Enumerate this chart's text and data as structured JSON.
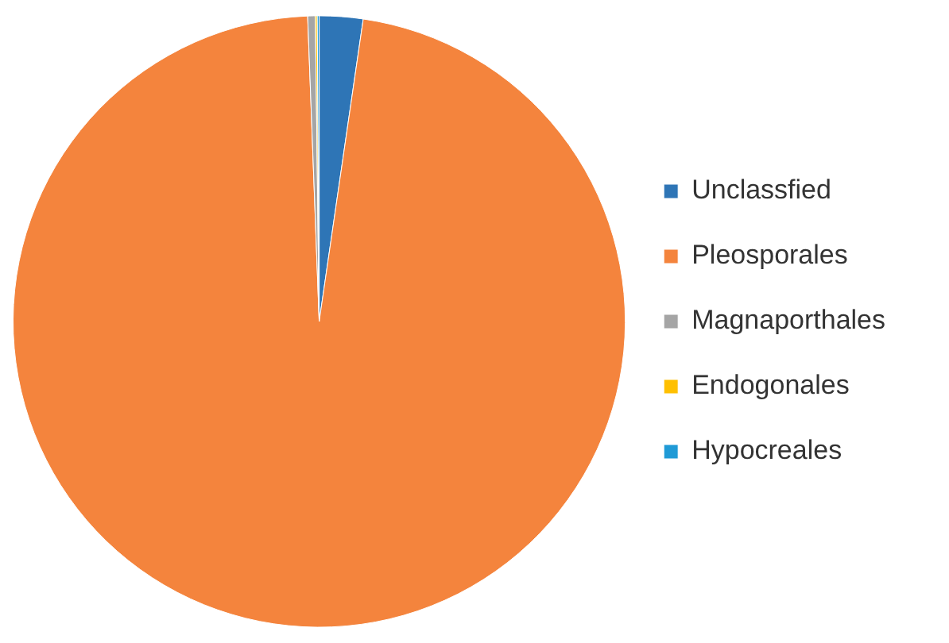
{
  "chart_data": {
    "type": "pie",
    "categories": [
      "Unclassfied",
      "Pleosporales",
      "Magnaporthales",
      "Endogonales",
      "Hypocreales"
    ],
    "values": [
      2.3,
      97.1,
      0.4,
      0.1,
      0.1
    ],
    "colors": [
      "#2e75b6",
      "#f4843d",
      "#a5a5a5",
      "#ffc000",
      "#1f9ad6"
    ],
    "legend": "right"
  }
}
